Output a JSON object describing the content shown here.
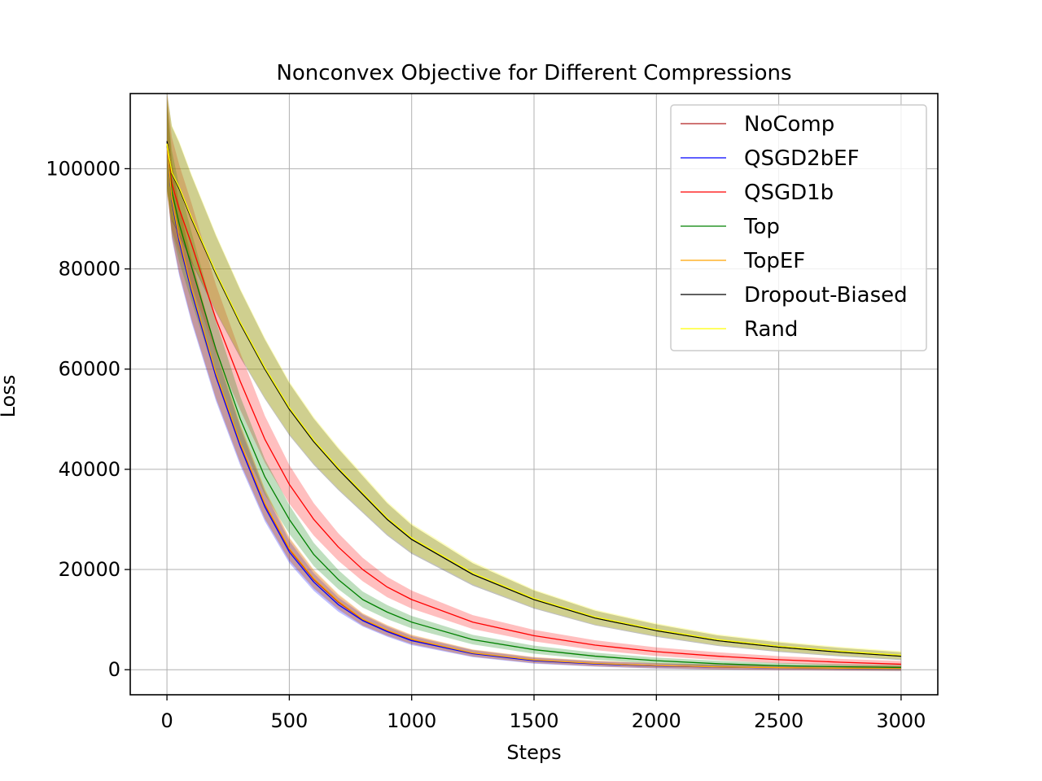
{
  "chart_data": {
    "type": "line",
    "title": "Nonconvex Objective for Different Compressions",
    "xlabel": "Steps",
    "ylabel": "Loss",
    "xlim": [
      -150,
      3150
    ],
    "ylim": [
      -5000,
      115000
    ],
    "grid": true,
    "legend_position": "top-right",
    "x_ticks": [
      0,
      500,
      1000,
      1500,
      2000,
      2500,
      3000
    ],
    "y_ticks": [
      0,
      20000,
      40000,
      60000,
      80000,
      100000
    ],
    "x_tick_labels": [
      "0",
      "500",
      "1000",
      "1500",
      "2000",
      "2500",
      "3000"
    ],
    "y_tick_labels": [
      "0",
      "20000",
      "40000",
      "60000",
      "80000",
      "100000"
    ],
    "x": [
      0,
      20,
      50,
      100,
      200,
      300,
      400,
      500,
      600,
      700,
      800,
      900,
      1000,
      1250,
      1500,
      1750,
      2000,
      2250,
      2500,
      2750,
      3000
    ],
    "series": [
      {
        "name": "NoComp",
        "color": "#b22222",
        "band": 1500,
        "values": [
          105000,
          94000,
          86000,
          76000,
          59000,
          45000,
          33000,
          24000,
          18000,
          13500,
          10000,
          7800,
          6000,
          3300,
          1900,
          1200,
          800,
          550,
          400,
          300,
          230
        ]
      },
      {
        "name": "QSGD2bEF",
        "color": "#0000ff",
        "band": 1500,
        "values": [
          105000,
          93500,
          85500,
          75500,
          58500,
          44500,
          32500,
          23500,
          17500,
          13000,
          9800,
          7600,
          5800,
          3200,
          1800,
          1150,
          750,
          520,
          380,
          280,
          210
        ]
      },
      {
        "name": "QSGD1b",
        "color": "#ff0000",
        "band": 1800,
        "values": [
          105000,
          97000,
          92000,
          85000,
          70000,
          57500,
          46000,
          37000,
          30000,
          24500,
          20000,
          16500,
          14000,
          9500,
          6800,
          4900,
          3600,
          2700,
          2000,
          1500,
          1100
        ]
      },
      {
        "name": "Top",
        "color": "#008000",
        "band": 1600,
        "values": [
          105000,
          95500,
          89000,
          80500,
          64000,
          50000,
          38500,
          30000,
          23000,
          18000,
          14000,
          11500,
          9500,
          6000,
          4000,
          2700,
          1800,
          1200,
          800,
          600,
          450
        ]
      },
      {
        "name": "TopEF",
        "color": "#ffa500",
        "band": 1500,
        "values": [
          105000,
          94000,
          86200,
          76200,
          59200,
          45200,
          33200,
          24200,
          18200,
          13700,
          10100,
          7900,
          6100,
          3350,
          1950,
          1250,
          820,
          560,
          410,
          310,
          240
        ]
      },
      {
        "name": "Dropout-Biased",
        "color": "#000000",
        "band": 1800,
        "values": [
          105500,
          99000,
          96000,
          90000,
          79000,
          69000,
          60000,
          52000,
          45500,
          40000,
          35000,
          30000,
          26000,
          19000,
          14000,
          10300,
          7800,
          5800,
          4500,
          3500,
          2700
        ]
      },
      {
        "name": "Rand",
        "color": "#ffff00",
        "band": 1800,
        "values": [
          105000,
          99200,
          96300,
          90300,
          79300,
          69300,
          60300,
          52300,
          45800,
          40300,
          35300,
          30300,
          26300,
          19300,
          14200,
          10500,
          8000,
          6000,
          4700,
          3700,
          2900
        ]
      }
    ]
  }
}
